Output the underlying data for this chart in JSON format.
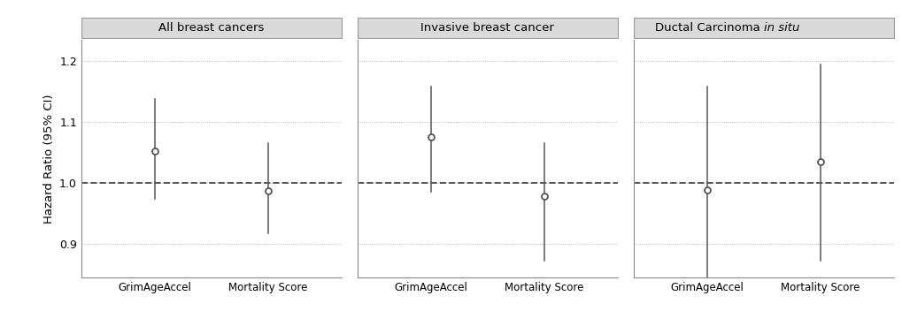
{
  "panels": [
    {
      "title": "All breast cancers",
      "title_style": "normal",
      "points": [
        {
          "label": "GrimAgeAccel",
          "hr": 1.052,
          "ci_lo": 0.974,
          "ci_hi": 1.138
        },
        {
          "label": "Mortality Score",
          "hr": 0.987,
          "ci_lo": 0.918,
          "ci_hi": 1.065
        }
      ]
    },
    {
      "title": "Invasive breast cancer",
      "title_style": "normal",
      "points": [
        {
          "label": "GrimAgeAccel",
          "hr": 1.076,
          "ci_lo": 0.985,
          "ci_hi": 1.158
        },
        {
          "label": "Mortality Score",
          "hr": 0.978,
          "ci_lo": 0.872,
          "ci_hi": 1.065
        }
      ]
    },
    {
      "title": "Ductal Carcinoma",
      "title_italic": "in situ",
      "title_style": "mixed",
      "points": [
        {
          "label": "GrimAgeAccel",
          "hr": 0.988,
          "ci_lo": 0.82,
          "ci_hi": 1.158
        },
        {
          "label": "Mortality Score",
          "hr": 1.035,
          "ci_lo": 0.872,
          "ci_hi": 1.195
        }
      ]
    }
  ],
  "ylim": [
    0.845,
    1.235
  ],
  "yticks": [
    0.9,
    1.0,
    1.1,
    1.2
  ],
  "ytick_labels": [
    "0.9",
    "1.0",
    "1.1",
    "1.2"
  ],
  "ylabel": "Hazard Ratio (95% CI)",
  "ref_line": 1.0,
  "grid_color": "#aaaaaa",
  "point_color": "#555555",
  "point_size": 5,
  "line_color": "#555555",
  "dashed_color": "#555555",
  "title_bg_color": "#d9d9d9",
  "title_edge_color": "#999999",
  "title_text_color": "#000000",
  "label_color": "#000000",
  "ylabel_color": "#000000",
  "spine_color": "#888888",
  "x_positions": [
    1,
    2
  ],
  "xlim": [
    0.35,
    2.65
  ]
}
